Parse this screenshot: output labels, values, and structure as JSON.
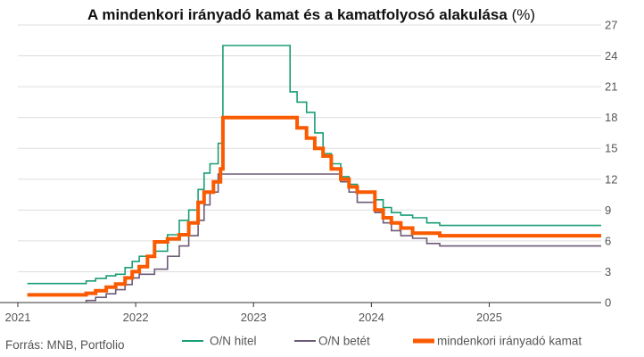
{
  "colors": {
    "hitel": "#1a9e77",
    "betet": "#6d5b78",
    "kamat": "#fa5a00",
    "grid": "#dddddd",
    "axis": "#333333",
    "text": "#555555"
  },
  "chart_data": {
    "type": "line",
    "title": "A mindenkori irányadó kamat és a kamatfolyosó alakulása",
    "title_unit": "(%)",
    "xlabel": "",
    "ylabel": "",
    "x_ticks": [
      "2021",
      "2022",
      "2023",
      "2024",
      "2025"
    ],
    "y_ticks": [
      "0",
      "3",
      "6",
      "9",
      "12",
      "15",
      "18",
      "21",
      "24",
      "27"
    ],
    "ylim": [
      0,
      27
    ],
    "xlim": [
      2021.0,
      2025.95
    ],
    "grid": true,
    "legend_position": "bottom",
    "source": "Forrás: MNB, Portfolio",
    "series": [
      {
        "name": "O/N hitel",
        "color_key": "hitel",
        "points": [
          [
            2021.08,
            1.85
          ],
          [
            2021.58,
            1.85
          ],
          [
            2021.58,
            2.1
          ],
          [
            2021.66,
            2.1
          ],
          [
            2021.66,
            2.35
          ],
          [
            2021.75,
            2.35
          ],
          [
            2021.75,
            2.6
          ],
          [
            2021.83,
            2.6
          ],
          [
            2021.83,
            2.75
          ],
          [
            2021.91,
            2.75
          ],
          [
            2021.91,
            3.4
          ],
          [
            2021.97,
            3.4
          ],
          [
            2021.97,
            4.0
          ],
          [
            2022.03,
            4.0
          ],
          [
            2022.03,
            4.5
          ],
          [
            2022.16,
            4.5
          ],
          [
            2022.16,
            5.0
          ],
          [
            2022.27,
            5.0
          ],
          [
            2022.27,
            6.6
          ],
          [
            2022.37,
            6.6
          ],
          [
            2022.37,
            8.0
          ],
          [
            2022.45,
            8.0
          ],
          [
            2022.45,
            9.0
          ],
          [
            2022.53,
            9.0
          ],
          [
            2022.53,
            11.0
          ],
          [
            2022.58,
            11.0
          ],
          [
            2022.58,
            12.6
          ],
          [
            2022.63,
            12.6
          ],
          [
            2022.63,
            13.5
          ],
          [
            2022.7,
            13.5
          ],
          [
            2022.7,
            15.5
          ],
          [
            2022.74,
            15.5
          ],
          [
            2022.74,
            25.0
          ],
          [
            2023.31,
            25.0
          ],
          [
            2023.31,
            20.5
          ],
          [
            2023.37,
            20.5
          ],
          [
            2023.37,
            19.5
          ],
          [
            2023.45,
            19.5
          ],
          [
            2023.45,
            18.5
          ],
          [
            2023.52,
            18.5
          ],
          [
            2023.52,
            16.5
          ],
          [
            2023.59,
            16.5
          ],
          [
            2023.59,
            14.5
          ],
          [
            2023.66,
            14.5
          ],
          [
            2023.66,
            13.5
          ],
          [
            2023.74,
            13.5
          ],
          [
            2023.74,
            12.25
          ],
          [
            2023.81,
            12.25
          ],
          [
            2023.81,
            11.5
          ],
          [
            2023.88,
            11.5
          ],
          [
            2023.88,
            10.75
          ],
          [
            2024.03,
            10.75
          ],
          [
            2024.03,
            10.0
          ],
          [
            2024.1,
            10.0
          ],
          [
            2024.1,
            9.25
          ],
          [
            2024.17,
            9.25
          ],
          [
            2024.17,
            8.75
          ],
          [
            2024.25,
            8.75
          ],
          [
            2024.25,
            8.5
          ],
          [
            2024.35,
            8.5
          ],
          [
            2024.35,
            8.25
          ],
          [
            2024.47,
            8.25
          ],
          [
            2024.47,
            7.75
          ],
          [
            2024.58,
            7.75
          ],
          [
            2024.58,
            7.5
          ],
          [
            2025.95,
            7.5
          ]
        ]
      },
      {
        "name": "O/N betét",
        "color_key": "betet",
        "points": [
          [
            2021.58,
            -0.05
          ],
          [
            2021.58,
            0.2
          ],
          [
            2021.66,
            0.2
          ],
          [
            2021.66,
            0.5
          ],
          [
            2021.75,
            0.5
          ],
          [
            2021.75,
            0.85
          ],
          [
            2021.83,
            0.85
          ],
          [
            2021.83,
            1.25
          ],
          [
            2021.91,
            1.25
          ],
          [
            2021.91,
            1.75
          ],
          [
            2021.97,
            1.75
          ],
          [
            2021.97,
            2.4
          ],
          [
            2022.03,
            2.4
          ],
          [
            2022.03,
            2.75
          ],
          [
            2022.16,
            2.75
          ],
          [
            2022.16,
            3.25
          ],
          [
            2022.27,
            3.25
          ],
          [
            2022.27,
            4.5
          ],
          [
            2022.37,
            4.5
          ],
          [
            2022.37,
            5.5
          ],
          [
            2022.45,
            5.5
          ],
          [
            2022.45,
            6.5
          ],
          [
            2022.53,
            6.5
          ],
          [
            2022.53,
            8.0
          ],
          [
            2022.58,
            8.0
          ],
          [
            2022.58,
            9.5
          ],
          [
            2022.63,
            9.5
          ],
          [
            2022.63,
            10.75
          ],
          [
            2022.7,
            10.75
          ],
          [
            2022.7,
            12.5
          ],
          [
            2023.74,
            12.5
          ],
          [
            2023.74,
            11.75
          ],
          [
            2023.81,
            11.75
          ],
          [
            2023.81,
            10.75
          ],
          [
            2023.88,
            10.75
          ],
          [
            2023.88,
            9.75
          ],
          [
            2024.03,
            9.75
          ],
          [
            2024.03,
            8.75
          ],
          [
            2024.1,
            8.75
          ],
          [
            2024.1,
            7.75
          ],
          [
            2024.17,
            7.75
          ],
          [
            2024.17,
            7.0
          ],
          [
            2024.25,
            7.0
          ],
          [
            2024.25,
            6.5
          ],
          [
            2024.35,
            6.5
          ],
          [
            2024.35,
            6.25
          ],
          [
            2024.47,
            6.25
          ],
          [
            2024.47,
            5.75
          ],
          [
            2024.58,
            5.75
          ],
          [
            2024.58,
            5.5
          ],
          [
            2025.95,
            5.5
          ]
        ]
      },
      {
        "name": "mindenkori irányadó kamat",
        "color_key": "kamat",
        "points": [
          [
            2021.08,
            0.75
          ],
          [
            2021.58,
            0.75
          ],
          [
            2021.58,
            0.9
          ],
          [
            2021.66,
            0.9
          ],
          [
            2021.66,
            1.15
          ],
          [
            2021.75,
            1.15
          ],
          [
            2021.75,
            1.5
          ],
          [
            2021.83,
            1.5
          ],
          [
            2021.83,
            1.8
          ],
          [
            2021.91,
            1.8
          ],
          [
            2021.91,
            2.4
          ],
          [
            2021.97,
            2.4
          ],
          [
            2021.97,
            3.0
          ],
          [
            2022.03,
            3.0
          ],
          [
            2022.03,
            3.5
          ],
          [
            2022.1,
            3.5
          ],
          [
            2022.1,
            4.5
          ],
          [
            2022.16,
            4.5
          ],
          [
            2022.16,
            5.9
          ],
          [
            2022.27,
            5.9
          ],
          [
            2022.27,
            6.2
          ],
          [
            2022.37,
            6.2
          ],
          [
            2022.37,
            6.6
          ],
          [
            2022.45,
            6.6
          ],
          [
            2022.45,
            7.75
          ],
          [
            2022.53,
            7.75
          ],
          [
            2022.53,
            9.75
          ],
          [
            2022.58,
            9.75
          ],
          [
            2022.58,
            10.75
          ],
          [
            2022.66,
            10.75
          ],
          [
            2022.66,
            11.75
          ],
          [
            2022.72,
            11.75
          ],
          [
            2022.72,
            13.0
          ],
          [
            2022.74,
            13.0
          ],
          [
            2022.74,
            18.0
          ],
          [
            2023.37,
            18.0
          ],
          [
            2023.37,
            17.0
          ],
          [
            2023.45,
            17.0
          ],
          [
            2023.45,
            16.0
          ],
          [
            2023.52,
            16.0
          ],
          [
            2023.52,
            15.0
          ],
          [
            2023.59,
            15.0
          ],
          [
            2023.59,
            14.25
          ],
          [
            2023.66,
            14.25
          ],
          [
            2023.66,
            13.0
          ],
          [
            2023.74,
            13.0
          ],
          [
            2023.74,
            12.0
          ],
          [
            2023.81,
            12.0
          ],
          [
            2023.81,
            11.25
          ],
          [
            2023.88,
            11.25
          ],
          [
            2023.88,
            10.75
          ],
          [
            2024.03,
            10.75
          ],
          [
            2024.03,
            9.0
          ],
          [
            2024.1,
            9.0
          ],
          [
            2024.1,
            8.25
          ],
          [
            2024.17,
            8.25
          ],
          [
            2024.17,
            7.75
          ],
          [
            2024.25,
            7.75
          ],
          [
            2024.25,
            7.25
          ],
          [
            2024.35,
            7.25
          ],
          [
            2024.35,
            6.75
          ],
          [
            2024.58,
            6.75
          ],
          [
            2024.58,
            6.5
          ],
          [
            2025.95,
            6.5
          ]
        ]
      }
    ]
  }
}
